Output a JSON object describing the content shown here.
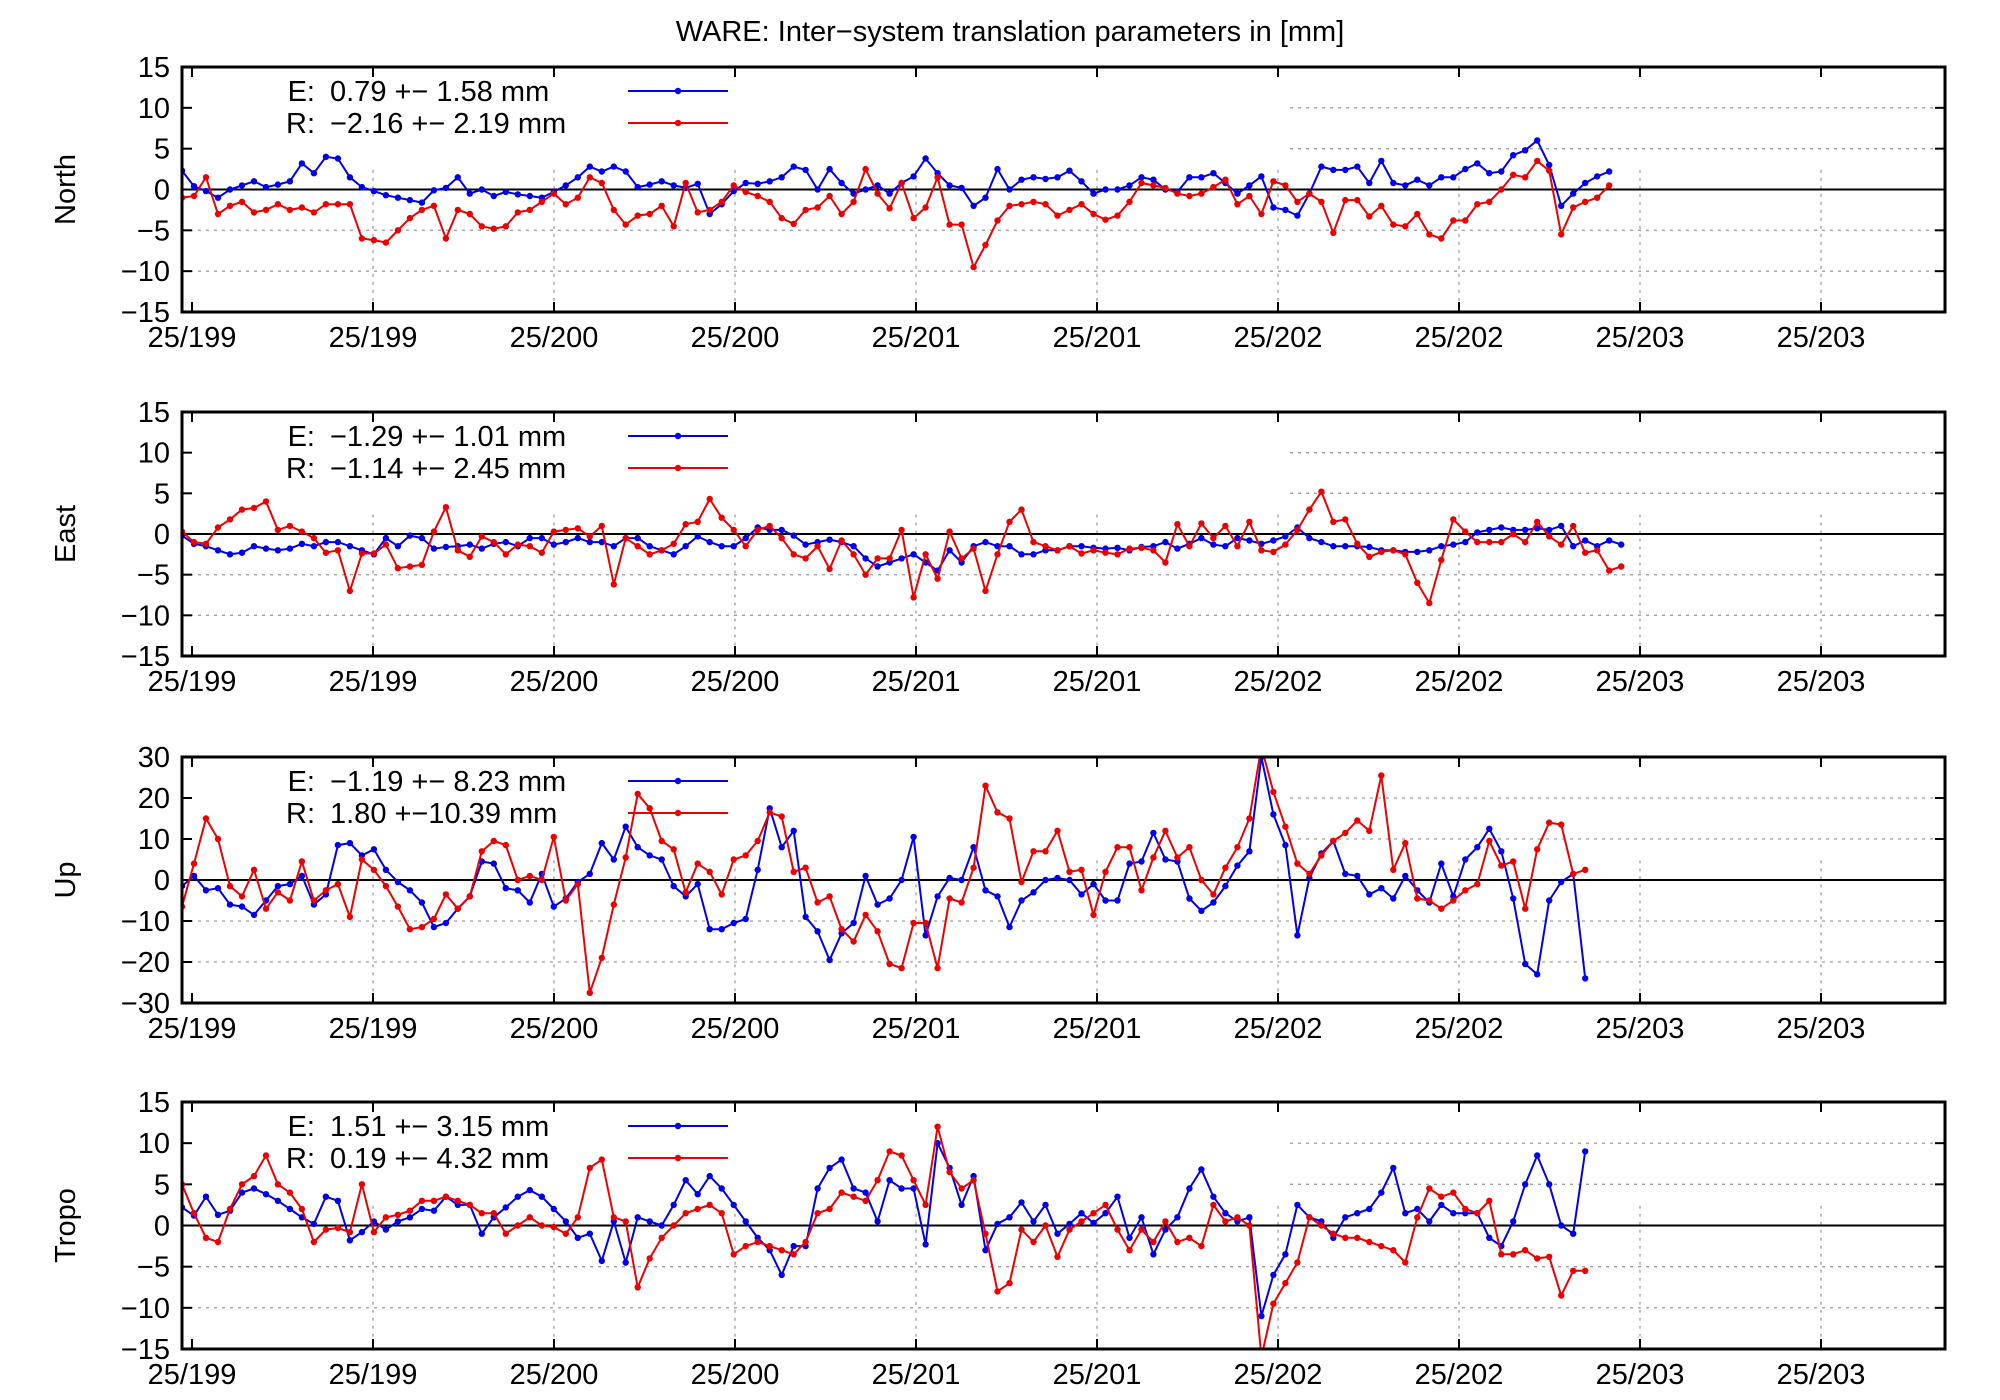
{
  "title": "WARE: Inter−system translation parameters in [mm]",
  "colors": {
    "E": "#0000ee",
    "R": "#ee0000",
    "grid": "#a0a0a0",
    "axis": "#000000"
  },
  "x_tick_labels": [
    "25/199",
    "25/199",
    "25/200",
    "25/200",
    "25/201",
    "25/201",
    "25/202",
    "25/202",
    "25/203",
    "25/203"
  ],
  "chart_data": [
    {
      "type": "line",
      "ylabel": "North",
      "ylim": [
        -15,
        15
      ],
      "yticks": [
        15,
        10,
        5,
        0,
        -5,
        -10,
        -15
      ],
      "grid": true,
      "legend_placement": "top-left",
      "xlim": [
        0,
        147
      ],
      "series": [
        {
          "name": "E",
          "label": "E:",
          "stats": "0.79 +− 1.58 mm",
          "values": [
            2.3,
            0.4,
            -0.2,
            -1.0,
            0.0,
            0.5,
            1.0,
            0.3,
            0.6,
            1.0,
            3.2,
            2.0,
            4.0,
            3.8,
            1.5,
            0.3,
            -0.2,
            -0.7,
            -1.0,
            -1.3,
            -1.6,
            -0.1,
            0.2,
            1.5,
            -0.5,
            0.0,
            -0.8,
            -0.3,
            -0.6,
            -0.8,
            -1.0,
            -0.3,
            0.5,
            1.5,
            2.8,
            2.2,
            2.8,
            2.2,
            0.3,
            0.6,
            1.0,
            0.5,
            0.2,
            0.7,
            -3.0,
            -1.8,
            -0.2,
            0.8,
            0.7,
            1.0,
            1.5,
            2.8,
            2.4,
            0.0,
            2.5,
            0.8,
            -0.5,
            0.0,
            0.5,
            -0.5,
            0.8,
            1.6,
            3.8,
            2.0,
            0.5,
            0.2,
            -2.0,
            -1.0,
            2.5,
            0.0,
            1.2,
            1.5,
            1.3,
            1.5,
            2.3,
            1.0,
            -0.5,
            0.0,
            0.0,
            0.5,
            1.5,
            1.2,
            0.0,
            -0.3,
            1.5,
            1.5,
            2.0,
            0.8,
            -0.5,
            0.5,
            1.6,
            -2.2,
            -2.5,
            -3.2,
            -0.5,
            2.8,
            2.4,
            2.4,
            2.8,
            0.8,
            3.5,
            0.8,
            0.5,
            1.2,
            0.5,
            1.5,
            1.5,
            2.5,
            3.2,
            2.0,
            2.2,
            4.2,
            4.8,
            6.0,
            3.0,
            -2.0,
            -0.5,
            0.8,
            1.6,
            2.2
          ]
        },
        {
          "name": "R",
          "label": "R:",
          "stats": "−2.16 +− 2.19 mm",
          "values": [
            -1.0,
            -0.8,
            1.5,
            -3.0,
            -2.0,
            -1.5,
            -2.8,
            -2.5,
            -1.8,
            -2.5,
            -2.2,
            -2.8,
            -1.8,
            -1.8,
            -1.8,
            -6.0,
            -6.2,
            -6.5,
            -5.0,
            -3.5,
            -2.5,
            -2.0,
            -6.0,
            -2.5,
            -3.0,
            -4.5,
            -4.8,
            -4.5,
            -2.8,
            -2.5,
            -1.5,
            -0.5,
            -1.8,
            -1.0,
            1.5,
            0.8,
            -2.5,
            -4.3,
            -3.2,
            -3.0,
            -2.0,
            -4.5,
            0.8,
            -2.8,
            -2.5,
            -1.5,
            0.5,
            -0.3,
            -0.8,
            -1.5,
            -3.5,
            -4.2,
            -2.5,
            -2.2,
            -0.8,
            -3.0,
            -1.5,
            2.5,
            -0.5,
            -2.3,
            0.8,
            -3.5,
            -2.2,
            1.5,
            -4.3,
            -4.3,
            -9.5,
            -6.8,
            -3.8,
            -2.0,
            -1.8,
            -1.5,
            -1.8,
            -3.2,
            -2.5,
            -1.8,
            -3.0,
            -3.7,
            -3.2,
            -1.5,
            0.8,
            0.5,
            0.2,
            -0.5,
            -0.8,
            -0.5,
            0.3,
            1.2,
            -1.8,
            -0.8,
            -3.0,
            1.0,
            0.5,
            -1.5,
            -0.5,
            -1.5,
            -5.3,
            -1.3,
            -1.3,
            -3.3,
            -2.0,
            -4.3,
            -4.5,
            -3.0,
            -5.5,
            -6.0,
            -3.8,
            -3.8,
            -1.8,
            -1.5,
            0.0,
            1.8,
            1.5,
            3.5,
            2.3,
            -5.5,
            -2.2,
            -1.5,
            -1.0,
            0.5
          ]
        }
      ]
    },
    {
      "type": "line",
      "ylabel": "East",
      "ylim": [
        -15,
        15
      ],
      "yticks": [
        15,
        10,
        5,
        0,
        -5,
        -10,
        -15
      ],
      "grid": true,
      "legend_placement": "top-left",
      "xlim": [
        0,
        147
      ],
      "series": [
        {
          "name": "E",
          "label": "E:",
          "stats": "−1.29 +− 1.01 mm",
          "values": [
            -0.2,
            -1.2,
            -1.5,
            -2.0,
            -2.5,
            -2.3,
            -1.5,
            -1.8,
            -2.0,
            -1.8,
            -1.2,
            -1.5,
            -1.0,
            -1.0,
            -1.5,
            -2.0,
            -2.5,
            -0.5,
            -1.5,
            -0.2,
            -0.5,
            -1.8,
            -1.6,
            -1.5,
            -1.3,
            -1.8,
            -1.2,
            -1.0,
            -1.5,
            -0.5,
            -0.5,
            -1.3,
            -1.0,
            -0.5,
            -1.0,
            -1.0,
            -1.5,
            -0.5,
            -0.5,
            -1.5,
            -2.0,
            -2.5,
            -1.5,
            -0.3,
            -1.0,
            -1.5,
            -1.5,
            -0.5,
            0.8,
            0.5,
            0.5,
            -0.2,
            -1.3,
            -1.0,
            -0.7,
            -1.0,
            -1.5,
            -3.0,
            -4.0,
            -3.5,
            -3.0,
            -2.5,
            -3.5,
            -4.5,
            -2.0,
            -3.5,
            -1.5,
            -1.0,
            -1.5,
            -1.5,
            -2.5,
            -2.5,
            -2.0,
            -2.0,
            -1.5,
            -1.5,
            -1.7,
            -1.8,
            -1.7,
            -2.0,
            -1.6,
            -1.5,
            -1.0,
            -1.8,
            -1.2,
            -0.5,
            -1.3,
            -1.5,
            -0.5,
            -0.8,
            -1.2,
            -0.8,
            -0.3,
            0.8,
            -0.5,
            -1.0,
            -1.5,
            -1.5,
            -1.5,
            -1.6,
            -2.0,
            -2.0,
            -2.2,
            -2.2,
            -2.0,
            -1.5,
            -1.3,
            -1.0,
            0.2,
            0.5,
            0.8,
            0.5,
            0.5,
            0.7,
            0.5,
            1.0,
            -1.5,
            -0.8,
            -1.5,
            -0.8,
            -1.3
          ]
        },
        {
          "name": "R",
          "label": "R:",
          "stats": "−1.14 +− 2.45 mm",
          "values": [
            0.3,
            -1.0,
            -1.2,
            0.8,
            1.8,
            3.0,
            3.2,
            4.0,
            0.5,
            1.0,
            0.3,
            -0.5,
            -2.3,
            -2.0,
            -7.0,
            -2.4,
            -2.4,
            -1.3,
            -4.2,
            -4.0,
            -3.8,
            0.3,
            3.3,
            -2.0,
            -2.8,
            -0.3,
            -1.0,
            -2.5,
            -1.3,
            -1.5,
            -2.3,
            0.3,
            0.5,
            0.7,
            -0.3,
            1.0,
            -6.2,
            -0.5,
            -1.5,
            -2.5,
            -2.0,
            -1.2,
            1.2,
            1.5,
            4.3,
            2.0,
            0.5,
            -1.5,
            0.5,
            1.0,
            -0.5,
            -2.5,
            -3.0,
            -1.5,
            -4.3,
            -0.8,
            -2.5,
            -5.0,
            -3.0,
            -3.0,
            0.5,
            -7.8,
            -2.5,
            -5.5,
            0.3,
            -3.0,
            -1.8,
            -7.0,
            -2.5,
            1.5,
            3.0,
            -1.0,
            -1.5,
            -2.0,
            -1.5,
            -2.4,
            -2.0,
            -2.3,
            -2.5,
            -1.8,
            -1.7,
            -2.0,
            -3.5,
            1.2,
            -1.5,
            1.3,
            -0.5,
            1.0,
            -1.5,
            1.5,
            -2.0,
            -2.2,
            -1.3,
            0.5,
            3.0,
            5.2,
            1.5,
            1.8,
            -1.2,
            -2.8,
            -2.2,
            -2.0,
            -2.5,
            -6.0,
            -8.5,
            -3.2,
            1.8,
            0.3,
            -1.0,
            -1.0,
            -1.0,
            0.0,
            -1.0,
            1.5,
            -0.3,
            -1.3,
            1.0,
            -2.3,
            -2.0,
            -4.5,
            -4.0
          ]
        }
      ]
    },
    {
      "type": "line",
      "ylabel": "Up",
      "ylim": [
        -30,
        30
      ],
      "yticks": [
        30,
        20,
        10,
        0,
        -10,
        -20,
        -30
      ],
      "grid": true,
      "legend_placement": "top-left",
      "xlim": [
        0,
        147
      ],
      "series": [
        {
          "name": "E",
          "label": "E:",
          "stats": "−1.19 +− 8.23 mm",
          "values": [
            -1.5,
            1.0,
            -2.5,
            -2.0,
            -6.0,
            -6.5,
            -8.5,
            -5.0,
            -1.5,
            -1.0,
            1.0,
            -6.0,
            -3.5,
            8.5,
            9.0,
            6.0,
            7.5,
            2.5,
            -0.5,
            -2.5,
            -5.5,
            -11.5,
            -10.5,
            -7.0,
            -4.0,
            4.5,
            4.0,
            -2.0,
            -2.5,
            -5.5,
            1.5,
            -6.5,
            -4.5,
            -0.5,
            1.5,
            9.0,
            5.0,
            13.0,
            8.0,
            6.0,
            5.0,
            -1.5,
            -4.0,
            -1.0,
            -12.0,
            -12.0,
            -10.5,
            -9.5,
            2.5,
            17.5,
            8.0,
            12.0,
            -9.0,
            -12.5,
            -19.5,
            -13.0,
            -10.5,
            1.0,
            -6.0,
            -4.5,
            0.0,
            10.5,
            -13.5,
            -4.0,
            0.5,
            0.0,
            8.0,
            -2.5,
            -4.0,
            -11.5,
            -5.0,
            -3.0,
            0.0,
            0.5,
            0.0,
            -3.5,
            -1.0,
            -5.0,
            -5.0,
            4.0,
            4.5,
            11.5,
            5.0,
            4.5,
            -4.5,
            -7.5,
            -5.5,
            -1.5,
            3.5,
            7.0,
            30.0,
            16.0,
            8.5,
            -13.5,
            0.5,
            6.5,
            9.5,
            1.5,
            1.0,
            -3.5,
            -2.0,
            -4.5,
            1.0,
            -2.5,
            -5.5,
            4.0,
            -4.0,
            5.0,
            8.0,
            12.5,
            7.0,
            -4.5,
            -20.5,
            -23.0,
            -5.0,
            -0.5,
            1.5,
            -24.0
          ]
        },
        {
          "name": "R",
          "label": "R:",
          "stats": "1.80 +−10.39 mm",
          "values": [
            -6.5,
            4.0,
            15.0,
            10.0,
            -1.5,
            -4.0,
            2.5,
            -7.0,
            -3.0,
            -5.0,
            4.5,
            -5.0,
            -2.5,
            -1.0,
            -9.0,
            5.0,
            2.5,
            -1.5,
            -6.5,
            -12.0,
            -11.5,
            -9.5,
            -3.5,
            -7.0,
            -4.0,
            7.0,
            9.5,
            8.5,
            0.0,
            1.0,
            0.0,
            10.5,
            -5.0,
            -1.0,
            -27.5,
            -19.0,
            -6.0,
            5.5,
            21.0,
            17.5,
            9.5,
            7.5,
            -3.0,
            4.0,
            2.0,
            -3.5,
            5.0,
            6.0,
            9.5,
            16.5,
            15.5,
            2.0,
            3.0,
            -5.5,
            -4.0,
            -12.0,
            -15.0,
            -8.5,
            -12.5,
            -20.5,
            -21.5,
            -10.5,
            -10.5,
            -21.5,
            -4.5,
            -5.5,
            3.0,
            23.0,
            16.5,
            15.0,
            -0.5,
            7.0,
            7.0,
            12.0,
            2.0,
            2.5,
            -8.5,
            2.0,
            8.0,
            8.0,
            -2.5,
            5.5,
            12.0,
            5.5,
            8.0,
            0.0,
            -3.5,
            3.0,
            8.0,
            15.0,
            32.5,
            21.5,
            13.0,
            4.0,
            1.5,
            6.0,
            9.5,
            11.5,
            14.5,
            12.0,
            25.5,
            2.5,
            9.0,
            -4.5,
            -5.0,
            -7.0,
            -5.0,
            -2.5,
            -1.0,
            9.5,
            3.5,
            4.5,
            -7.0,
            7.5,
            14.0,
            13.5,
            1.5,
            2.5
          ]
        }
      ]
    },
    {
      "type": "line",
      "ylabel": "Tropo",
      "ylim": [
        -15,
        15
      ],
      "yticks": [
        15,
        10,
        5,
        0,
        -5,
        -10,
        -15
      ],
      "grid": true,
      "legend_placement": "top-left",
      "xlim": [
        0,
        147
      ],
      "series": [
        {
          "name": "E",
          "label": "E:",
          "stats": "1.51 +− 3.15 mm",
          "values": [
            2.2,
            1.2,
            3.5,
            1.3,
            1.8,
            4.0,
            4.5,
            3.8,
            3.0,
            2.0,
            1.0,
            0.2,
            3.5,
            3.0,
            -1.8,
            -0.8,
            0.5,
            -0.5,
            0.5,
            1.0,
            2.0,
            1.8,
            3.5,
            2.5,
            2.5,
            -1.0,
            1.0,
            2.2,
            3.5,
            4.3,
            3.5,
            2.0,
            0.5,
            -1.5,
            -1.0,
            -4.3,
            0.5,
            -4.5,
            1.0,
            0.5,
            0.0,
            2.5,
            5.5,
            3.8,
            6.0,
            4.5,
            2.5,
            0.5,
            -1.5,
            -3.0,
            -6.0,
            -2.5,
            -2.5,
            4.5,
            7.0,
            8.0,
            4.5,
            4.0,
            0.5,
            5.5,
            4.5,
            4.5,
            -2.3,
            10.0,
            7.0,
            2.5,
            6.0,
            -3.0,
            0.2,
            1.0,
            2.8,
            0.5,
            2.5,
            -1.0,
            0.2,
            1.5,
            0.3,
            1.5,
            3.5,
            -1.5,
            1.0,
            -3.5,
            -0.5,
            1.0,
            4.5,
            6.8,
            3.5,
            1.5,
            0.5,
            1.0,
            -11.0,
            -6.0,
            -3.5,
            2.5,
            1.0,
            0.5,
            -1.5,
            1.0,
            1.5,
            2.0,
            4.0,
            7.0,
            1.5,
            2.0,
            0.5,
            2.5,
            1.5,
            1.5,
            1.5,
            -1.5,
            -2.5,
            0.5,
            5.0,
            8.5,
            5.0,
            0.0,
            -1.0,
            9.0
          ]
        },
        {
          "name": "R",
          "label": "R:",
          "stats": "0.19 +− 4.32 mm",
          "values": [
            5.0,
            1.5,
            -1.5,
            -2.0,
            2.0,
            5.0,
            6.0,
            8.5,
            5.0,
            4.0,
            2.0,
            -2.0,
            -0.5,
            -0.3,
            -0.8,
            5.0,
            -0.8,
            1.0,
            1.3,
            1.8,
            3.0,
            3.0,
            3.5,
            3.0,
            2.5,
            1.5,
            1.5,
            -1.0,
            0.0,
            1.0,
            0.0,
            -0.2,
            -1.0,
            1.0,
            7.0,
            8.0,
            1.0,
            0.5,
            -7.5,
            -4.0,
            -1.5,
            0.0,
            1.5,
            2.0,
            2.5,
            1.5,
            -3.5,
            -2.5,
            -2.0,
            -2.5,
            -3.0,
            -3.5,
            -2.0,
            1.5,
            2.0,
            4.0,
            3.5,
            3.0,
            5.5,
            9.0,
            8.5,
            5.5,
            2.5,
            12.0,
            6.5,
            4.5,
            5.5,
            -1.0,
            -8.0,
            -7.0,
            -0.5,
            -2.0,
            0.0,
            -3.8,
            -0.5,
            0.5,
            1.5,
            2.5,
            -0.5,
            -3.0,
            -0.5,
            -2.0,
            0.5,
            -2.0,
            -1.5,
            -2.5,
            2.5,
            0.5,
            1.0,
            0.0,
            -16.0,
            -9.5,
            -7.0,
            -4.5,
            1.0,
            0.0,
            -1.0,
            -1.5,
            -1.5,
            -2.0,
            -2.5,
            -3.0,
            -4.5,
            1.0,
            4.5,
            3.5,
            4.0,
            2.0,
            1.5,
            3.0,
            -3.5,
            -3.5,
            -3.0,
            -4.0,
            -3.8,
            -8.5,
            -5.5,
            -5.5
          ]
        }
      ]
    }
  ]
}
